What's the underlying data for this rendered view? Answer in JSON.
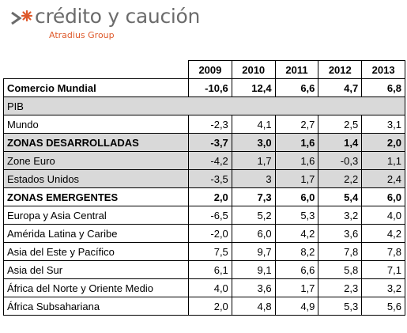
{
  "logo": {
    "name": "crédito y caución",
    "subtitle": "Atradius Group",
    "colors": {
      "text": "#6b6b6b",
      "accent": "#de5a2c"
    }
  },
  "table": {
    "years": [
      "2009",
      "2010",
      "2011",
      "2012",
      "2013"
    ],
    "rows": [
      {
        "label": "Comercio Mundial",
        "values": [
          "-10,6",
          "12,4",
          "6,6",
          "4,7",
          "6,8"
        ],
        "bold": true,
        "gray": false
      },
      {
        "label": "PIB",
        "section": true
      },
      {
        "label": "Mundo",
        "values": [
          "-2,3",
          "4,1",
          "2,7",
          "2,5",
          "3,1"
        ],
        "bold": false,
        "gray": false
      },
      {
        "label": "ZONAS DESARROLLADAS",
        "values": [
          "-3,7",
          "3,0",
          "1,6",
          "1,4",
          "2,0"
        ],
        "bold": true,
        "gray": true
      },
      {
        "label": "Zone Euro",
        "values": [
          "-4,2",
          "1,7",
          "1,6",
          "-0,3",
          "1,1"
        ],
        "bold": false,
        "gray": true
      },
      {
        "label": "Estados Unidos",
        "values": [
          "-3,5",
          "3",
          "1,7",
          "2,2",
          "2,4"
        ],
        "bold": false,
        "gray": true
      },
      {
        "label": "ZONAS EMERGENTES",
        "values": [
          "2,0",
          "7,3",
          "6,0",
          "5,4",
          "6,0"
        ],
        "bold": true,
        "gray": false
      },
      {
        "label": "Europa y Asia Central",
        "values": [
          "-6,5",
          "5,2",
          "5,3",
          "3,2",
          "4,0"
        ],
        "bold": false,
        "gray": false
      },
      {
        "label": "Amérida Latina y Caribe",
        "values": [
          "-2,0",
          "6,0",
          "4,2",
          "3,6",
          "4,2"
        ],
        "bold": false,
        "gray": false
      },
      {
        "label": "Asia del Este y Pacífico",
        "values": [
          "7,5",
          "9,7",
          "8,2",
          "7,8",
          "7,8"
        ],
        "bold": false,
        "gray": false
      },
      {
        "label": "Asia del Sur",
        "values": [
          "6,1",
          "9,1",
          "6,6",
          "5,8",
          "7,1"
        ],
        "bold": false,
        "gray": false
      },
      {
        "label": "África del Norte y Oriente Medio",
        "values": [
          "4,0",
          "3,6",
          "1,7",
          "2,3",
          "3,2"
        ],
        "bold": false,
        "gray": false
      },
      {
        "label": "África Subsahariana",
        "values": [
          "2,0",
          "4,8",
          "4,9",
          "5,3",
          "5,6"
        ],
        "bold": false,
        "gray": false
      }
    ]
  }
}
